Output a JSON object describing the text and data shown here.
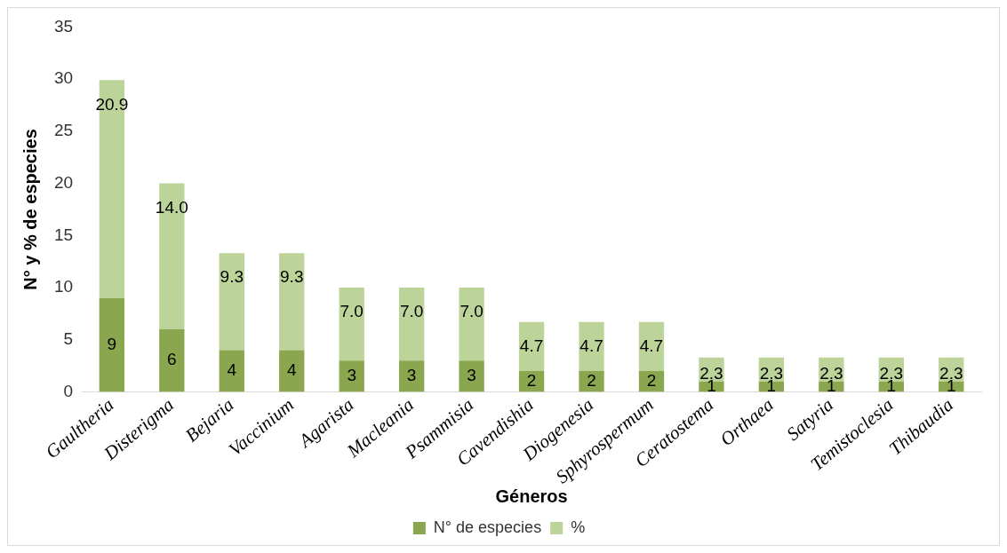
{
  "chart_data": {
    "type": "bar",
    "stacked": true,
    "xlabel": "Géneros",
    "ylabel": "N° y % de especies",
    "categories": [
      "Gaultheria",
      "Disterigma",
      "Bejaria",
      "Vaccinium",
      "Agarista",
      "Macleania",
      "Psammisia",
      "Cavendishia",
      "Diogenesia",
      "Sphyrospermum",
      "Ceratostema",
      "Orthaea",
      "Satyria",
      "Temistoclesia",
      "Thibaudia"
    ],
    "series": [
      {
        "name": "N° de especies",
        "color": "#8aa64f",
        "values": [
          9,
          6,
          4,
          4,
          3,
          3,
          3,
          2,
          2,
          2,
          1,
          1,
          1,
          1,
          1
        ],
        "value_labels": [
          "9",
          "6",
          "4",
          "4",
          "3",
          "3",
          "3",
          "2",
          "2",
          "2",
          "1",
          "1",
          "1",
          "1",
          "1"
        ]
      },
      {
        "name": "%",
        "color": "#bcd39a",
        "values": [
          20.9,
          14.0,
          9.3,
          9.3,
          7.0,
          7.0,
          7.0,
          4.7,
          4.7,
          4.7,
          2.3,
          2.3,
          2.3,
          2.3,
          2.3
        ],
        "value_labels": [
          "20.9",
          "14.0",
          "9.3",
          "9.3",
          "7.0",
          "7.0",
          "7.0",
          "4.7",
          "4.7",
          "4.7",
          "2.3",
          "2.3",
          "2.3",
          "2.3",
          "2.3"
        ]
      }
    ],
    "ylim": [
      0,
      35
    ],
    "yticks": [
      0,
      5,
      10,
      15,
      20,
      25,
      30,
      35
    ],
    "grid": false,
    "legend": "bottom"
  }
}
